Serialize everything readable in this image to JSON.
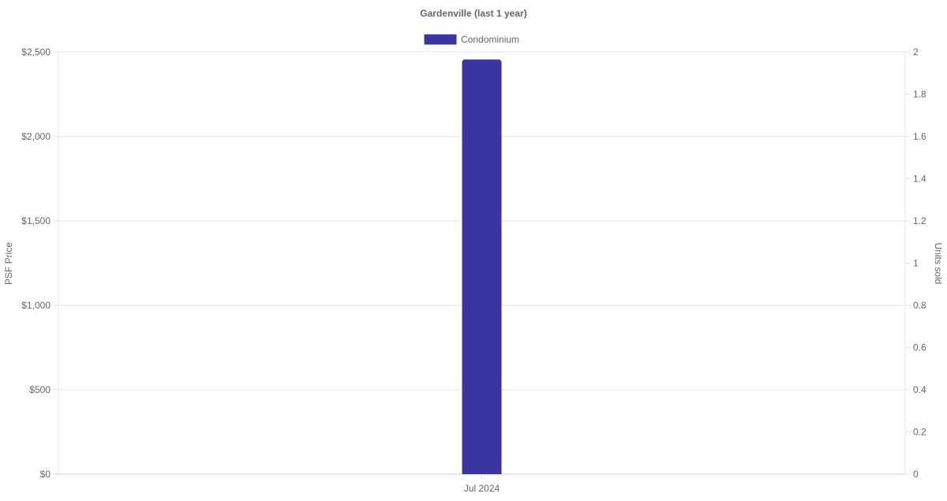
{
  "chart_data": {
    "type": "bar",
    "title": "Gardenville (last 1 year)",
    "categories": [
      "Jul 2024"
    ],
    "series": [
      {
        "name": "Condominium",
        "values": [
          2456
        ],
        "color": "#3a35a0",
        "axis": "left"
      }
    ],
    "ylabel": "PSF Price",
    "y2label": "Units sold",
    "ylim": [
      0,
      2500
    ],
    "y2lim": [
      0,
      2
    ],
    "yticks": [
      "$0",
      "$500",
      "$1,000",
      "$1,500",
      "$2,000",
      "$2,500"
    ],
    "y2ticks": [
      "0",
      "0.2",
      "0.4",
      "0.6",
      "0.8",
      "1",
      "1.2",
      "1.4",
      "1.6",
      "1.8",
      "2"
    ],
    "grid": true,
    "legend": "top"
  }
}
